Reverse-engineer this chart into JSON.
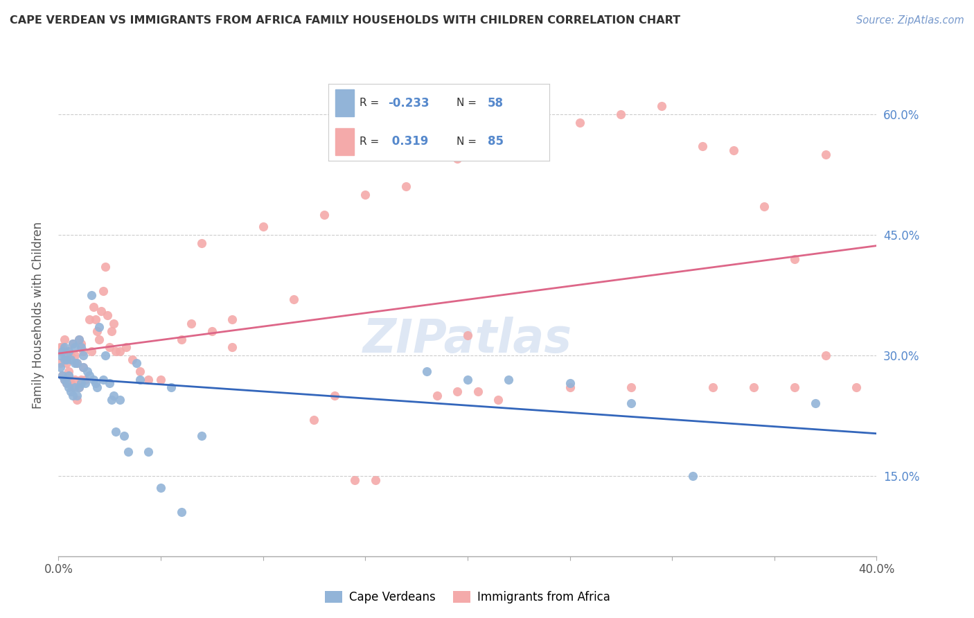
{
  "title": "CAPE VERDEAN VS IMMIGRANTS FROM AFRICA FAMILY HOUSEHOLDS WITH CHILDREN CORRELATION CHART",
  "source": "Source: ZipAtlas.com",
  "ylabel": "Family Households with Children",
  "x_min": 0.0,
  "x_max": 0.4,
  "y_min": 0.05,
  "y_max": 0.65,
  "x_ticks": [
    0.0,
    0.05,
    0.1,
    0.15,
    0.2,
    0.25,
    0.3,
    0.35,
    0.4
  ],
  "x_tick_labels": [
    "0.0%",
    "",
    "",
    "",
    "",
    "",
    "",
    "",
    "40.0%"
  ],
  "y_ticks": [
    0.15,
    0.3,
    0.45,
    0.6
  ],
  "y_tick_labels": [
    "15.0%",
    "30.0%",
    "45.0%",
    "60.0%"
  ],
  "legend_label_blue": "Cape Verdeans",
  "legend_label_pink": "Immigrants from Africa",
  "R_blue": -0.233,
  "N_blue": 58,
  "R_pink": 0.319,
  "N_pink": 85,
  "blue_color": "#92B4D8",
  "pink_color": "#F4AAAA",
  "blue_line_color": "#3366BB",
  "pink_line_color": "#DD6688",
  "watermark": "ZIPatlas",
  "blue_scatter_x": [
    0.001,
    0.001,
    0.002,
    0.002,
    0.003,
    0.003,
    0.003,
    0.004,
    0.004,
    0.005,
    0.005,
    0.005,
    0.006,
    0.006,
    0.007,
    0.007,
    0.008,
    0.008,
    0.008,
    0.009,
    0.009,
    0.01,
    0.01,
    0.011,
    0.011,
    0.012,
    0.012,
    0.013,
    0.014,
    0.015,
    0.016,
    0.017,
    0.018,
    0.019,
    0.02,
    0.022,
    0.023,
    0.025,
    0.026,
    0.027,
    0.028,
    0.03,
    0.032,
    0.034,
    0.038,
    0.04,
    0.044,
    0.05,
    0.055,
    0.06,
    0.07,
    0.18,
    0.2,
    0.22,
    0.25,
    0.28,
    0.31,
    0.37
  ],
  "blue_scatter_y": [
    0.285,
    0.3,
    0.275,
    0.305,
    0.295,
    0.27,
    0.31,
    0.265,
    0.295,
    0.275,
    0.26,
    0.305,
    0.255,
    0.295,
    0.25,
    0.315,
    0.26,
    0.29,
    0.31,
    0.25,
    0.29,
    0.32,
    0.26,
    0.31,
    0.265,
    0.285,
    0.3,
    0.265,
    0.28,
    0.275,
    0.375,
    0.27,
    0.265,
    0.26,
    0.335,
    0.27,
    0.3,
    0.265,
    0.245,
    0.25,
    0.205,
    0.245,
    0.2,
    0.18,
    0.29,
    0.27,
    0.18,
    0.135,
    0.26,
    0.105,
    0.2,
    0.28,
    0.27,
    0.27,
    0.265,
    0.24,
    0.15,
    0.24
  ],
  "pink_scatter_x": [
    0.001,
    0.001,
    0.002,
    0.002,
    0.003,
    0.003,
    0.003,
    0.004,
    0.004,
    0.005,
    0.005,
    0.005,
    0.006,
    0.006,
    0.007,
    0.007,
    0.008,
    0.008,
    0.009,
    0.009,
    0.01,
    0.01,
    0.011,
    0.011,
    0.012,
    0.012,
    0.013,
    0.015,
    0.016,
    0.017,
    0.018,
    0.019,
    0.02,
    0.021,
    0.022,
    0.023,
    0.024,
    0.025,
    0.026,
    0.027,
    0.028,
    0.03,
    0.033,
    0.036,
    0.04,
    0.044,
    0.05,
    0.06,
    0.07,
    0.085,
    0.1,
    0.115,
    0.13,
    0.15,
    0.17,
    0.195,
    0.21,
    0.23,
    0.255,
    0.275,
    0.295,
    0.315,
    0.33,
    0.345,
    0.36,
    0.375,
    0.39,
    0.2,
    0.25,
    0.195,
    0.205,
    0.215,
    0.185,
    0.135,
    0.145,
    0.155,
    0.125,
    0.065,
    0.075,
    0.085,
    0.32,
    0.34,
    0.28,
    0.36,
    0.375
  ],
  "pink_scatter_y": [
    0.29,
    0.31,
    0.275,
    0.31,
    0.27,
    0.3,
    0.32,
    0.265,
    0.29,
    0.275,
    0.28,
    0.305,
    0.265,
    0.3,
    0.26,
    0.315,
    0.27,
    0.3,
    0.245,
    0.29,
    0.32,
    0.26,
    0.315,
    0.27,
    0.285,
    0.305,
    0.27,
    0.345,
    0.305,
    0.36,
    0.345,
    0.33,
    0.32,
    0.355,
    0.38,
    0.41,
    0.35,
    0.31,
    0.33,
    0.34,
    0.305,
    0.305,
    0.31,
    0.295,
    0.28,
    0.27,
    0.27,
    0.32,
    0.44,
    0.345,
    0.46,
    0.37,
    0.475,
    0.5,
    0.51,
    0.545,
    0.56,
    0.58,
    0.59,
    0.6,
    0.61,
    0.56,
    0.555,
    0.485,
    0.42,
    0.3,
    0.26,
    0.325,
    0.26,
    0.255,
    0.255,
    0.245,
    0.25,
    0.25,
    0.145,
    0.145,
    0.22,
    0.34,
    0.33,
    0.31,
    0.26,
    0.26,
    0.26,
    0.26,
    0.55
  ]
}
